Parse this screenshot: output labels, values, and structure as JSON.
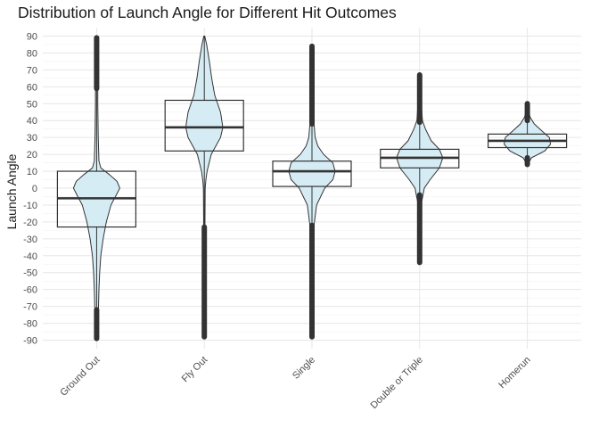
{
  "chart_data": {
    "type": "violin",
    "title": "Distribution of Launch Angle for Different Hit Outcomes",
    "xlabel": "",
    "ylabel": "Launch Angle",
    "ylim": [
      -95,
      95
    ],
    "yticks": [
      -90,
      -80,
      -70,
      -60,
      -50,
      -40,
      -30,
      -20,
      -10,
      0,
      10,
      20,
      30,
      40,
      50,
      60,
      70,
      80,
      90
    ],
    "grid": true,
    "categories": [
      "Ground Out",
      "Fly Out",
      "Single",
      "Double or Triple",
      "Homerun"
    ],
    "violin_fill": "#d6ecf5",
    "series": [
      {
        "category": "Ground Out",
        "box": {
          "q1": -23,
          "median": -6,
          "q3": 10,
          "whisker_low": -72,
          "whisker_high": 59
        },
        "outlier_ranges": [
          [
            59,
            89
          ],
          [
            -89,
            -72
          ]
        ],
        "density": [
          [
            -89,
            0.02
          ],
          [
            -80,
            0.05
          ],
          [
            -70,
            0.08
          ],
          [
            -60,
            0.1
          ],
          [
            -50,
            0.13
          ],
          [
            -40,
            0.18
          ],
          [
            -30,
            0.28
          ],
          [
            -20,
            0.42
          ],
          [
            -10,
            0.62
          ],
          [
            -4,
            0.85
          ],
          [
            0,
            1.0
          ],
          [
            4,
            0.88
          ],
          [
            8,
            0.55
          ],
          [
            12,
            0.18
          ],
          [
            16,
            0.1
          ],
          [
            30,
            0.07
          ],
          [
            50,
            0.05
          ],
          [
            70,
            0.05
          ],
          [
            89,
            0.04
          ]
        ]
      },
      {
        "category": "Fly Out",
        "box": {
          "q1": 22,
          "median": 36,
          "q3": 52,
          "whisker_low": -23,
          "whisker_high": 90
        },
        "outlier_ranges": [
          [
            -88,
            -23
          ]
        ],
        "density": [
          [
            -88,
            0.02
          ],
          [
            -40,
            0.02
          ],
          [
            0,
            0.04
          ],
          [
            5,
            0.07
          ],
          [
            10,
            0.12
          ],
          [
            20,
            0.3
          ],
          [
            30,
            0.7
          ],
          [
            36,
            0.8
          ],
          [
            45,
            0.7
          ],
          [
            55,
            0.45
          ],
          [
            65,
            0.32
          ],
          [
            75,
            0.22
          ],
          [
            85,
            0.1
          ],
          [
            90,
            0.02
          ]
        ]
      },
      {
        "category": "Single",
        "box": {
          "q1": 1,
          "median": 10,
          "q3": 16,
          "whisker_low": -22,
          "whisker_high": 38
        },
        "outlier_ranges": [
          [
            38,
            84
          ],
          [
            -88,
            -22
          ]
        ],
        "density": [
          [
            -88,
            0.02
          ],
          [
            -60,
            0.03
          ],
          [
            -40,
            0.05
          ],
          [
            -22,
            0.09
          ],
          [
            -10,
            0.2
          ],
          [
            0,
            0.55
          ],
          [
            5,
            0.9
          ],
          [
            10,
            1.0
          ],
          [
            15,
            0.9
          ],
          [
            20,
            0.5
          ],
          [
            25,
            0.25
          ],
          [
            30,
            0.14
          ],
          [
            38,
            0.09
          ],
          [
            50,
            0.05
          ],
          [
            60,
            0.05
          ],
          [
            84,
            0.02
          ]
        ]
      },
      {
        "category": "Double or Triple",
        "box": {
          "q1": 12,
          "median": 18,
          "q3": 23,
          "whisker_low": -4,
          "whisker_high": 39
        },
        "outlier_ranges": [
          [
            39,
            67
          ],
          [
            -44,
            -4
          ]
        ],
        "density": [
          [
            -44,
            0.02
          ],
          [
            -30,
            0.03
          ],
          [
            -10,
            0.06
          ],
          [
            0,
            0.2
          ],
          [
            5,
            0.45
          ],
          [
            12,
            0.85
          ],
          [
            18,
            1.0
          ],
          [
            23,
            0.85
          ],
          [
            28,
            0.5
          ],
          [
            35,
            0.25
          ],
          [
            40,
            0.12
          ],
          [
            50,
            0.07
          ],
          [
            60,
            0.04
          ],
          [
            67,
            0.02
          ]
        ]
      },
      {
        "category": "Homerun",
        "box": {
          "q1": 24,
          "median": 28,
          "q3": 32,
          "whisker_low": 18,
          "whisker_high": 40
        },
        "outlier_ranges": [
          [
            40,
            50
          ],
          [
            14,
            18
          ]
        ],
        "density": [
          [
            14,
            0.02
          ],
          [
            18,
            0.18
          ],
          [
            22,
            0.75
          ],
          [
            26,
            1.0
          ],
          [
            30,
            0.95
          ],
          [
            34,
            0.62
          ],
          [
            38,
            0.3
          ],
          [
            42,
            0.12
          ],
          [
            46,
            0.05
          ],
          [
            50,
            0.02
          ]
        ]
      }
    ]
  }
}
